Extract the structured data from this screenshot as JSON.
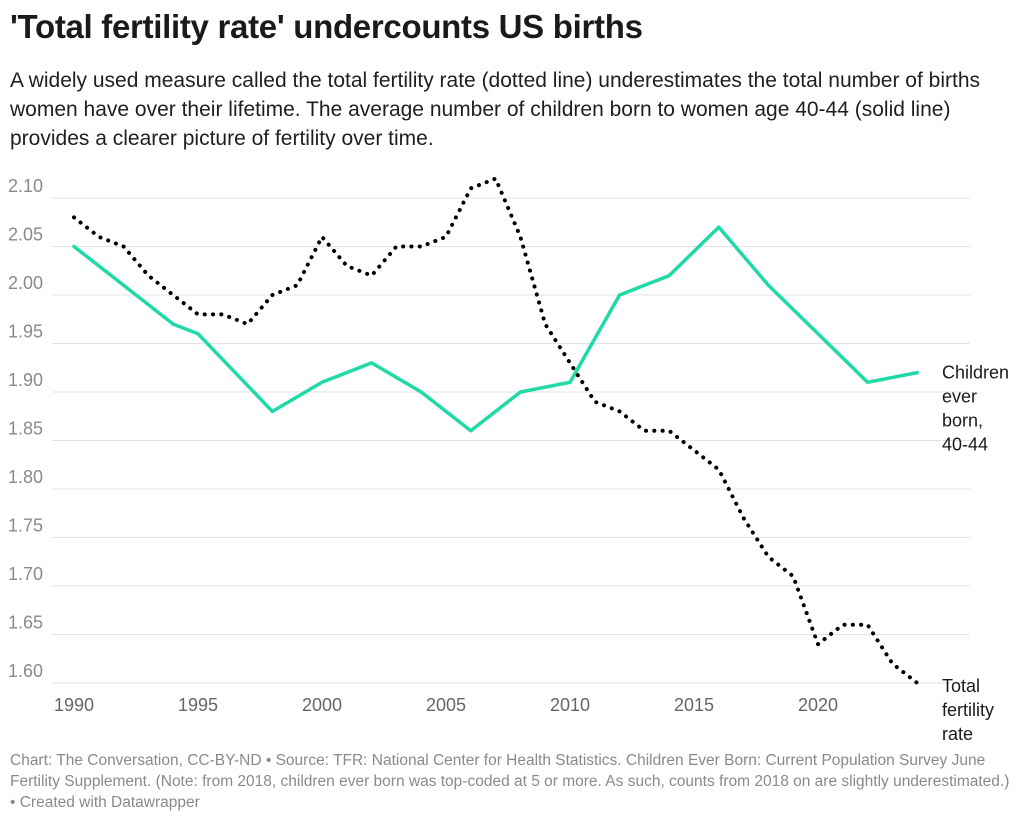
{
  "title": "'Total fertility rate' undercounts US births",
  "subtitle": "A widely used measure called the total fertility rate (dotted line) underestimates the total number of births women have over their lifetime. The average number of children born to women age 40-44 (solid line) provides a clearer picture of fertility over time.",
  "footer": {
    "credit": "Chart: The Conversation, CC-BY-ND",
    "source": "Source: TFR: National Center for Health Statistics. Children Ever Born: Current Population Survey June Fertility Supplement. (Note: from 2018, children ever born was top-coded at 5 or more. As such, counts from 2018 on are slightly underestimated.)",
    "tool": "Created with Datawrapper"
  },
  "colors": {
    "children_ever_born": "#20d9a8",
    "total_fertility_rate": "#000000",
    "grid": "#e3e3e3"
  },
  "chart_data": {
    "type": "line",
    "xlim": [
      1990,
      2024
    ],
    "ylim": [
      1.6,
      2.1
    ],
    "x_ticks": [
      "1990",
      "1995",
      "2000",
      "2005",
      "2010",
      "2015",
      "2020"
    ],
    "y_ticks": [
      "2.10",
      "2.05",
      "2.00",
      "1.95",
      "1.90",
      "1.85",
      "1.80",
      "1.75",
      "1.70",
      "1.65",
      "1.60"
    ],
    "grid": true,
    "series": [
      {
        "name": "Children ever born, 40-44",
        "label_lines": [
          "Children",
          "ever",
          "born,",
          "40-44"
        ],
        "style": "solid",
        "x": [
          1990,
          1992,
          1994,
          1995,
          1998,
          2000,
          2002,
          2004,
          2006,
          2008,
          2010,
          2012,
          2014,
          2016,
          2018,
          2020,
          2022,
          2024
        ],
        "y": [
          2.05,
          2.01,
          1.97,
          1.96,
          1.88,
          1.91,
          1.93,
          1.9,
          1.86,
          1.9,
          1.91,
          2.0,
          2.02,
          2.07,
          2.01,
          1.96,
          1.91,
          1.92
        ]
      },
      {
        "name": "Total fertility rate",
        "label_lines": [
          "Total",
          "fertility",
          "rate"
        ],
        "style": "dotted",
        "x": [
          1990,
          1991,
          1992,
          1993,
          1994,
          1995,
          1996,
          1997,
          1998,
          1999,
          2000,
          2001,
          2002,
          2003,
          2004,
          2005,
          2006,
          2007,
          2008,
          2009,
          2010,
          2011,
          2012,
          2013,
          2014,
          2015,
          2016,
          2017,
          2018,
          2019,
          2020,
          2021,
          2022,
          2023,
          2024
        ],
        "y": [
          2.08,
          2.06,
          2.05,
          2.02,
          2.0,
          1.98,
          1.98,
          1.97,
          2.0,
          2.01,
          2.06,
          2.03,
          2.02,
          2.05,
          2.05,
          2.06,
          2.11,
          2.12,
          2.06,
          1.97,
          1.93,
          1.89,
          1.88,
          1.86,
          1.86,
          1.84,
          1.82,
          1.77,
          1.73,
          1.71,
          1.64,
          1.66,
          1.66,
          1.62,
          1.6
        ]
      }
    ]
  }
}
